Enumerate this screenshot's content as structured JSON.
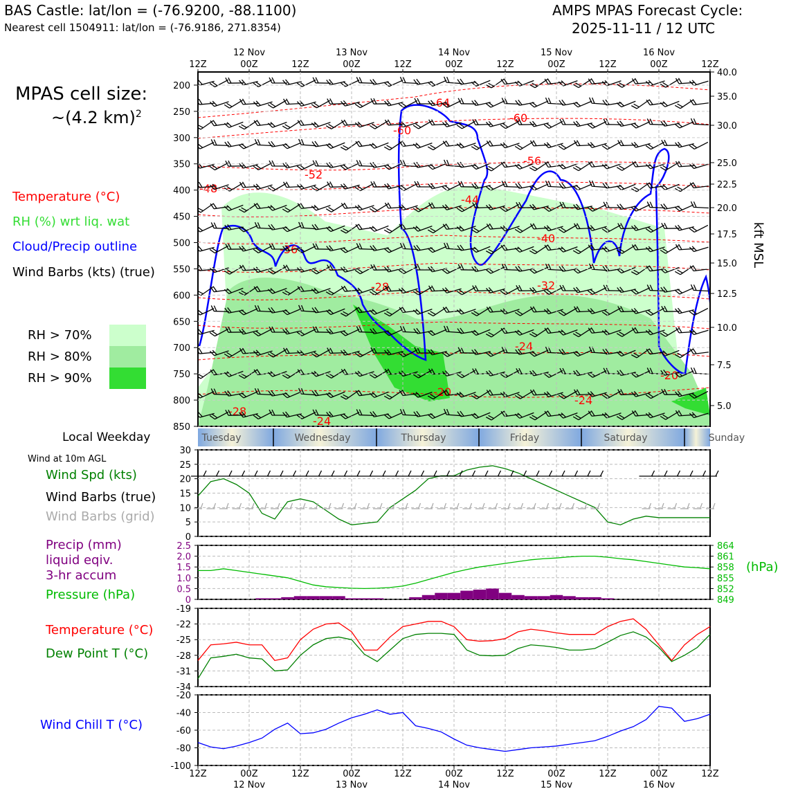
{
  "header": {
    "station_line": "BAS Castle: lat/lon = (-76.9200, -88.1100)",
    "cell_line": "Nearest cell 1504911: lat/lon = (-76.9186, 271.8354)",
    "cycle_title": "AMPS MPAS Forecast Cycle:",
    "cycle_value": "2025-11-11 / 12 UTC"
  },
  "left_panel": {
    "cell_size_label": "MPAS cell size:",
    "cell_size_value": "~(4.2 km)",
    "cell_size_exp": "2",
    "legend_temperature": "Temperature (°C)",
    "legend_rh": "RH (%) wrt liq. wat",
    "legend_cloud": "Cloud/Precip outline",
    "legend_wind": "Wind Barbs (kts) (true)",
    "rh_levels": [
      "RH > 70%",
      "RH > 80%",
      "RH > 90%"
    ],
    "local_weekday_label": "Local Weekday",
    "wind10m_label": "Wind at 10m AGL",
    "wind_spd_label": "Wind Spd (kts)",
    "wind_barbs_true_label": "Wind Barbs (true)",
    "wind_barbs_grid_label": "Wind Barbs (grid)",
    "precip_label_1": "Precip (mm)",
    "precip_label_2": "liquid eqiv.",
    "precip_label_3": "3-hr accum",
    "pressure_label": "Pressure (hPa)",
    "temp_label": "Temperature (°C)",
    "dew_label": "Dew Point T (°C)",
    "windchill_label": "Wind Chill T (°C)",
    "hpa_unit": "(hPa)"
  },
  "colors": {
    "rh70": "#ccffcc",
    "rh80": "#a0eca0",
    "rh90": "#33dd33",
    "temp": "#ff0000",
    "dew": "#008000",
    "cloud": "#0000ff",
    "precip": "#800080",
    "pressure": "#00bb00",
    "windchill": "#0000ff",
    "grid_barb": "#aaaaaa"
  },
  "top_axis": {
    "ticks": [
      "12Z",
      "00Z",
      "12Z",
      "00Z",
      "12Z",
      "00Z",
      "12Z",
      "00Z",
      "12Z",
      "00Z",
      "12Z"
    ],
    "dates": [
      "12 Nov",
      "13 Nov",
      "14 Nov",
      "15 Nov",
      "16 Nov"
    ]
  },
  "pressure_axis": [
    "200",
    "250",
    "300",
    "350",
    "400",
    "450",
    "500",
    "550",
    "600",
    "650",
    "700",
    "750",
    "800",
    "850"
  ],
  "kft_axis": {
    "label": "kft MSL",
    "ticks": [
      "40.0",
      "35.0",
      "30.0",
      "25.0",
      "22.5",
      "20.0",
      "17.5",
      "15.0",
      "12.5",
      "10.0",
      "7.5",
      "5.0"
    ]
  },
  "weekdays": [
    "Tuesday",
    "Wednesday",
    "Thursday",
    "Friday",
    "Saturday",
    "Sunday"
  ],
  "temp_contour_labels": [
    "-64",
    "-60",
    "-60",
    "-56",
    "-52",
    "-48",
    "-44",
    "-40",
    "-36",
    "-32",
    "-28",
    "-24",
    "-20",
    "-20",
    "-24",
    "-28",
    "-24",
    "-48"
  ],
  "chart_data": [
    {
      "type": "line",
      "title": "",
      "xlabel": "",
      "ylabel": "Wind Spd (kts)",
      "ylim": [
        0,
        30
      ],
      "yticks": [
        "30",
        "25",
        "20",
        "15",
        "10",
        "5",
        "0"
      ],
      "x_hours": [
        0,
        3,
        6,
        9,
        12,
        15,
        18,
        21,
        24,
        27,
        30,
        33,
        36,
        39,
        42,
        45,
        48,
        51,
        54,
        57,
        60,
        63,
        66,
        69,
        72,
        75,
        78,
        81,
        84,
        87,
        90,
        93,
        96,
        99,
        102,
        105,
        108,
        111,
        114,
        117,
        120
      ],
      "series": [
        {
          "name": "Wind Spd (kts)",
          "values": [
            14,
            19,
            20,
            18,
            15,
            8,
            6,
            12,
            13,
            12,
            9,
            6,
            4,
            4.5,
            5,
            10,
            13,
            16,
            20,
            21,
            21,
            23,
            24,
            24.5,
            23.5,
            22,
            20,
            18,
            16,
            14,
            12,
            10,
            5,
            4,
            6,
            7,
            6.5,
            6.5,
            6.5,
            6.5,
            6.5
          ]
        }
      ]
    },
    {
      "type": "bar",
      "title": "",
      "xlabel": "",
      "ylabel": "Precip (mm)",
      "ylim": [
        0,
        2.5
      ],
      "yticks": [
        "2.5",
        "2.0",
        "1.5",
        "1.0",
        "0.5",
        "0"
      ],
      "right_axis": {
        "label": "(hPa)",
        "ylim": [
          849,
          864
        ],
        "yticks": [
          "864",
          "861",
          "858",
          "855",
          "852",
          "849"
        ]
      },
      "x_hours": [
        0,
        3,
        6,
        9,
        12,
        15,
        18,
        21,
        24,
        27,
        30,
        33,
        36,
        39,
        42,
        45,
        48,
        51,
        54,
        57,
        60,
        63,
        66,
        69,
        72,
        75,
        78,
        81,
        84,
        87,
        90,
        93,
        96,
        99,
        102,
        105,
        108,
        111,
        114,
        117,
        120
      ],
      "series": [
        {
          "name": "Precip (mm)",
          "values": [
            0,
            0,
            0,
            0,
            0,
            0.05,
            0.05,
            0.1,
            0.15,
            0.15,
            0.15,
            0.15,
            0.05,
            0.05,
            0.05,
            0,
            0,
            0.1,
            0.2,
            0.3,
            0.3,
            0.4,
            0.45,
            0.5,
            0.3,
            0.2,
            0.15,
            0.15,
            0.2,
            0.15,
            0.1,
            0.1,
            0.05,
            0,
            0,
            0,
            0,
            0,
            0,
            0,
            0
          ]
        },
        {
          "name": "Pressure (hPa)",
          "values": [
            857,
            857,
            857.5,
            857,
            856.5,
            856,
            855.5,
            855,
            854,
            853,
            852.5,
            852.3,
            852.1,
            852,
            852.1,
            852.3,
            852.7,
            853.5,
            854.5,
            855.5,
            856.5,
            857.3,
            858,
            858.5,
            859,
            859.5,
            860,
            860.3,
            860.5,
            860.8,
            861,
            861,
            860.7,
            860.3,
            860,
            859.5,
            859,
            858.5,
            858,
            857.8,
            857.5
          ]
        }
      ]
    },
    {
      "type": "line",
      "title": "",
      "xlabel": "",
      "ylabel": "Temperature (°C)",
      "ylim": [
        -34,
        -19
      ],
      "yticks": [
        "-19",
        "-22",
        "-25",
        "-28",
        "-31",
        "-34"
      ],
      "x_hours": [
        0,
        3,
        6,
        9,
        12,
        15,
        18,
        21,
        24,
        27,
        30,
        33,
        36,
        39,
        42,
        45,
        48,
        51,
        54,
        57,
        60,
        63,
        66,
        69,
        72,
        75,
        78,
        81,
        84,
        87,
        90,
        93,
        96,
        99,
        102,
        105,
        108,
        111,
        114,
        117,
        120
      ],
      "series": [
        {
          "name": "Temperature (°C)",
          "values": [
            -29,
            -26,
            -25.8,
            -25.5,
            -26,
            -26,
            -29,
            -28.5,
            -25,
            -23,
            -22,
            -21.8,
            -23.5,
            -27,
            -27,
            -24.5,
            -22.5,
            -22,
            -21.5,
            -21.5,
            -22.5,
            -25,
            -25.3,
            -25.2,
            -24.8,
            -23.5,
            -23,
            -23.3,
            -23.7,
            -24,
            -24,
            -24,
            -22.5,
            -21.5,
            -21,
            -23,
            -26,
            -29,
            -26,
            -24,
            -22.5
          ]
        },
        {
          "name": "Dew Point T (°C)",
          "values": [
            -32.5,
            -28.5,
            -28.2,
            -27.8,
            -28.5,
            -28.7,
            -31,
            -30.8,
            -28,
            -26,
            -24.8,
            -24.5,
            -25,
            -27.8,
            -29.2,
            -27,
            -24.8,
            -24,
            -23.8,
            -23.8,
            -24,
            -27,
            -28,
            -28.1,
            -28,
            -26.7,
            -26,
            -26.2,
            -26.5,
            -27,
            -27,
            -26.7,
            -25.5,
            -24.2,
            -23.5,
            -24.5,
            -26.5,
            -29.2,
            -28,
            -26.5,
            -24
          ]
        }
      ]
    },
    {
      "type": "line",
      "title": "",
      "xlabel": "",
      "ylabel": "Wind Chill T (°C)",
      "ylim": [
        -100,
        -20
      ],
      "yticks": [
        "-20",
        "-40",
        "-60",
        "-80",
        "-100"
      ],
      "x_hours": [
        0,
        3,
        6,
        9,
        12,
        15,
        18,
        21,
        24,
        27,
        30,
        33,
        36,
        39,
        42,
        45,
        48,
        51,
        54,
        57,
        60,
        63,
        66,
        69,
        72,
        75,
        78,
        81,
        84,
        87,
        90,
        93,
        96,
        99,
        102,
        105,
        108,
        111,
        114,
        117,
        120
      ],
      "series": [
        {
          "name": "Wind Chill T (°C)",
          "values": [
            -74,
            -79,
            -81,
            -78,
            -74,
            -69,
            -59,
            -52,
            -64,
            -63,
            -59,
            -52,
            -46,
            -42,
            -37,
            -42,
            -40,
            -55,
            -58,
            -62,
            -70,
            -77,
            -80,
            -82,
            -84,
            -82,
            -80,
            -79,
            -78,
            -76,
            -74,
            -72,
            -67,
            -61,
            -56,
            -48,
            -33,
            -35,
            -50,
            -47,
            -42
          ]
        }
      ]
    }
  ]
}
